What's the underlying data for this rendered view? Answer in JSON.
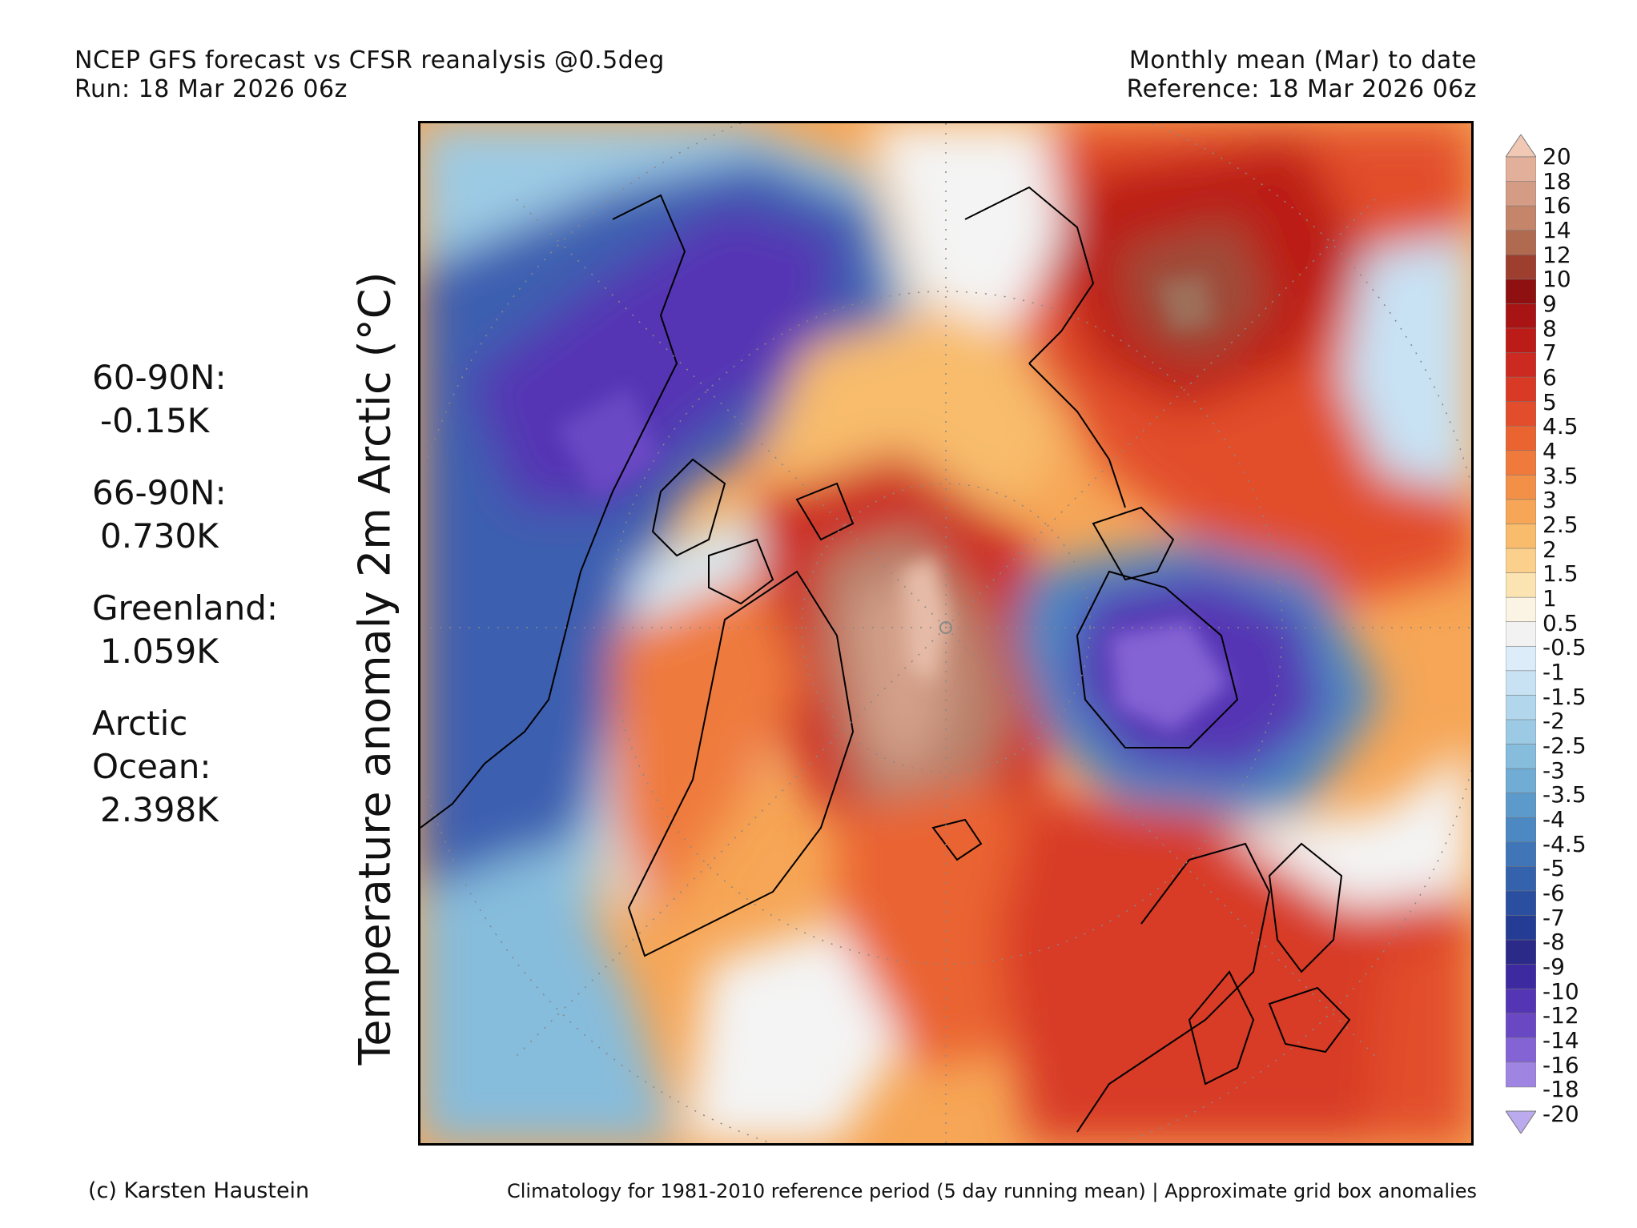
{
  "header": {
    "left_line1": "NCEP GFS forecast vs CFSR reanalysis @0.5deg",
    "left_line2": "Run: 18 Mar 2026 06z",
    "right_line1": "Monthly mean (Mar) to date",
    "right_line2": "Reference: 18 Mar 2026 06z"
  },
  "axis_label": "Temperature anomaly 2m Arctic (°C)",
  "stats": [
    {
      "name": "60-90N:",
      "value": "-0.15K"
    },
    {
      "name": "66-90N:",
      "value": "0.730K"
    },
    {
      "name": "Greenland:",
      "value": "1.059K"
    },
    {
      "name": "Arctic\nOcean:",
      "value": "2.398K"
    }
  ],
  "colorbar": {
    "labels": [
      "20",
      "18",
      "16",
      "14",
      "12",
      "10",
      "9",
      "8",
      "7",
      "6",
      "5",
      "4.5",
      "4",
      "3.5",
      "3",
      "2.5",
      "2",
      "1.5",
      "1",
      "0.5",
      "-0.5",
      "-1",
      "-1.5",
      "-2",
      "-2.5",
      "-3",
      "-3.5",
      "-4",
      "-4.5",
      "-5",
      "-6",
      "-7",
      "-8",
      "-9",
      "-10",
      "-12",
      "-14",
      "-16",
      "-18",
      "-20"
    ],
    "colors": [
      "#f0c8b4",
      "#e2b09a",
      "#d49c84",
      "#c4856a",
      "#b06a50",
      "#9e3e2e",
      "#8e1010",
      "#a81414",
      "#bc1c18",
      "#cc2a20",
      "#d83a26",
      "#e24e2c",
      "#ea6432",
      "#ef7a3c",
      "#f39048",
      "#f6a656",
      "#f8bc6c",
      "#fad08c",
      "#fbe4b2",
      "#fbf3e4",
      "#f2f2f2",
      "#dcecf8",
      "#c8e2f4",
      "#b2d6ec",
      "#9ccae4",
      "#86bcdc",
      "#70acd4",
      "#5c9acc",
      "#4c88c2",
      "#4076b8",
      "#3462ac",
      "#2a4ea0",
      "#243c94",
      "#2c2a88",
      "#3e2aa0",
      "#5436b4",
      "#6a48c4",
      "#8464d4",
      "#a084e2",
      "#bcaaee"
    ]
  },
  "footer": {
    "left": "(c) Karsten Haustein",
    "right": "Climatology for 1981-2010 reference period (5 day running mean) | Approximate grid box anomalies"
  }
}
